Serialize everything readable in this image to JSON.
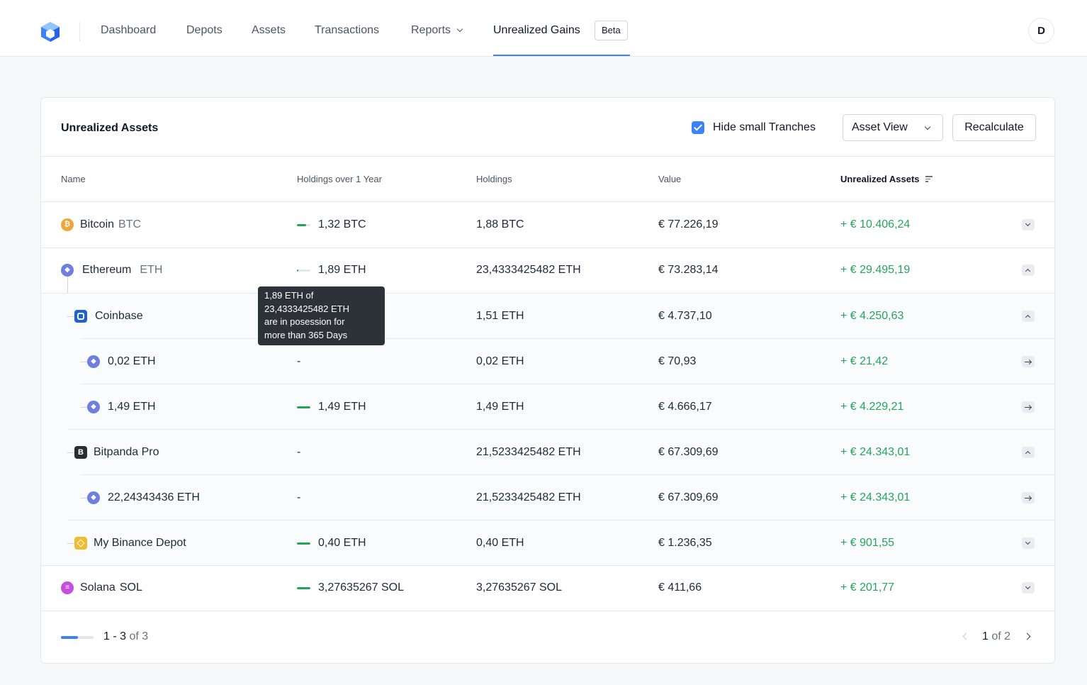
{
  "nav": {
    "items": [
      "Dashboard",
      "Depots",
      "Assets",
      "Transactions",
      "Reports",
      "Unrealized Gains"
    ],
    "beta_badge": "Beta",
    "avatar_initial": "D"
  },
  "card": {
    "title": "Unrealized Assets",
    "hide_small_label": "Hide small Tranches",
    "hide_small_checked": true,
    "view_select": "Asset View",
    "recalculate_label": "Recalculate"
  },
  "table": {
    "headers": [
      "Name",
      "Holdings over 1 Year",
      "Holdings",
      "Value",
      "Unrealized Assets"
    ],
    "rows": [
      {
        "name": "Bitcoin",
        "ticker": "BTC",
        "over_year": "1,32 BTC",
        "over_year_fraction": 0.7,
        "holdings": "1,88 BTC",
        "value": "€ 77.226,19",
        "gain": "+ € 10.406,24"
      },
      {
        "name": "Ethereum",
        "ticker": "ETH",
        "over_year": "1,89 ETH",
        "over_year_fraction": 0.08,
        "holdings": "23,4333425482 ETH",
        "value": "€ 73.283,14",
        "gain": "+ € 29.495,19"
      },
      {
        "name": "Coinbase",
        "ticker": "",
        "over_year": "",
        "holdings": "1,51 ETH",
        "value": "€ 4.737,10",
        "gain": "+ € 4.250,63"
      },
      {
        "name": "0,02 ETH",
        "ticker": "",
        "over_year": "-",
        "holdings": "0,02 ETH",
        "value": "€ 70,93",
        "gain": "+ € 21,42"
      },
      {
        "name": "1,49 ETH",
        "ticker": "",
        "over_year": "1,49 ETH",
        "over_year_fraction": 1.0,
        "holdings": "1,49 ETH",
        "value": "€ 4.666,17",
        "gain": "+ € 4.229,21"
      },
      {
        "name": "Bitpanda Pro",
        "ticker": "",
        "over_year": "-",
        "holdings": "21,5233425482 ETH",
        "value": "€ 67.309,69",
        "gain": "+ € 24.343,01"
      },
      {
        "name": "22,24343436 ETH",
        "ticker": "",
        "over_year": "-",
        "holdings": "21,5233425482 ETH",
        "value": "€ 67.309,69",
        "gain": "+ € 24.343,01"
      },
      {
        "name": "My Binance Depot",
        "ticker": "",
        "over_year": "0,40 ETH",
        "over_year_fraction": 1.0,
        "holdings": "0,40 ETH",
        "value": "€ 1.236,35",
        "gain": "+ € 901,55"
      },
      {
        "name": "Solana",
        "ticker": "SOL",
        "over_year": "3,27635267 SOL",
        "over_year_fraction": 1.0,
        "holdings": "3,27635267 SOL",
        "value": "€ 411,66",
        "gain": "+ € 201,77"
      }
    ]
  },
  "tooltip": {
    "line1": "1,89 ETH of",
    "line2": "23,4333425482 ETH",
    "line3": "are in posession for",
    "line4": "more than 365 Days"
  },
  "pagination": {
    "range": "1 - 3",
    "of_total": "of 3",
    "progress_fraction": 0.5,
    "page": "1",
    "of_pages": "of 2"
  },
  "colors": {
    "accent": "#3b82f6",
    "gain": "#22a55b",
    "bitcoin": "#f0a63a",
    "ethereum": "#6f7fe0",
    "solana": "#c54de0",
    "coinbase": "#1f5fd9",
    "bitpanda": "#2d2d2d",
    "binance": "#f3ba2f"
  }
}
